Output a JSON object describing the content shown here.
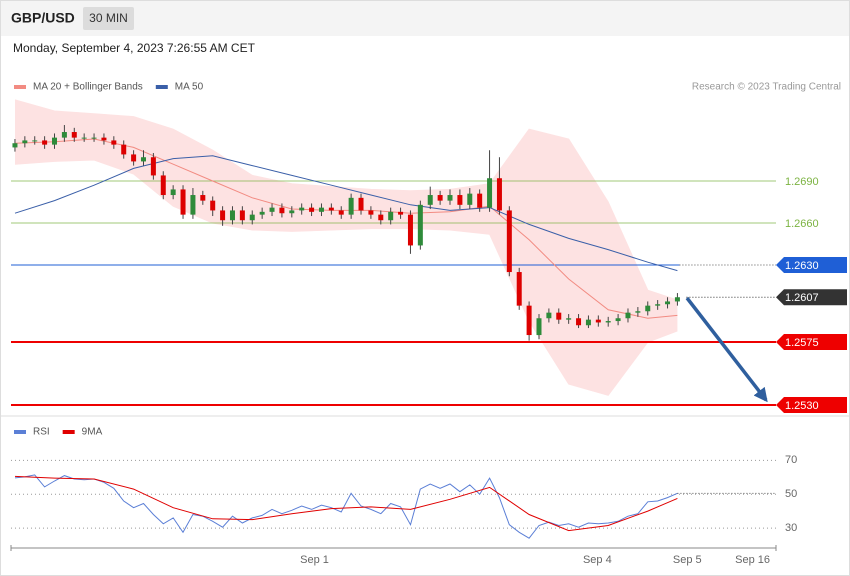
{
  "header": {
    "symbol": "GBP/USD",
    "interval": "30 MIN",
    "timestamp": "Monday, September 4, 2023 7:26:55 AM CET"
  },
  "chart_data": [
    {
      "type": "candlestick",
      "credit": "Research © 2023 Trading Central",
      "up_color": "#2e8b3a",
      "down_color": "#dd0000",
      "xlim": [
        -0.4,
        76.97
      ],
      "ylim": [
        1.25229,
        1.27693
      ],
      "open": [
        1.2714,
        1.2717,
        1.2719,
        1.2719,
        1.2716,
        1.2721,
        1.2725,
        1.2721,
        1.2721,
        1.2721,
        1.2719,
        1.2716,
        1.2709,
        1.2704,
        1.2707,
        1.2694,
        1.268,
        1.2684,
        1.2666,
        1.268,
        1.2676,
        1.2669,
        1.2662,
        1.2669,
        1.2662,
        1.2666,
        1.2668,
        1.2671,
        1.2667,
        1.2669,
        1.2671,
        1.2668,
        1.2671,
        1.2669,
        1.2666,
        1.2678,
        1.2669,
        1.2666,
        1.2662,
        1.2668,
        1.2666,
        1.2644,
        1.2673,
        1.268,
        1.2676,
        1.268,
        1.2673,
        1.2681,
        1.2671,
        1.2692,
        1.2669,
        1.2625,
        1.2601,
        1.258,
        1.2592,
        1.2596,
        1.2591,
        1.2592,
        1.2587,
        1.2591,
        1.2589,
        1.259,
        1.2592,
        1.2596,
        1.2597,
        1.2601,
        1.2602,
        1.2604
      ],
      "high": [
        1.272,
        1.2722,
        1.2722,
        1.2722,
        1.2724,
        1.273,
        1.2728,
        1.2724,
        1.2724,
        1.2724,
        1.2722,
        1.2719,
        1.2712,
        1.2712,
        1.271,
        1.2697,
        1.2687,
        1.2687,
        1.2685,
        1.2683,
        1.2679,
        1.2672,
        1.2672,
        1.2672,
        1.2669,
        1.2671,
        1.2674,
        1.2674,
        1.2672,
        1.2674,
        1.2674,
        1.2674,
        1.2674,
        1.2672,
        1.2681,
        1.2681,
        1.2672,
        1.2669,
        1.2671,
        1.2671,
        1.2669,
        1.2676,
        1.2686,
        1.2683,
        1.2684,
        1.2684,
        1.2685,
        1.2684,
        1.2712,
        1.2707,
        1.2672,
        1.2628,
        1.2604,
        1.2595,
        1.2599,
        1.2599,
        1.2595,
        1.2595,
        1.2594,
        1.2594,
        1.2593,
        1.2595,
        1.2599,
        1.26,
        1.2604,
        1.2605,
        1.2607,
        1.261
      ],
      "low": [
        1.2711,
        1.2714,
        1.2716,
        1.2713,
        1.2713,
        1.2718,
        1.2718,
        1.2718,
        1.2718,
        1.2716,
        1.2713,
        1.2706,
        1.2701,
        1.2701,
        1.2691,
        1.2677,
        1.2677,
        1.2663,
        1.2663,
        1.2673,
        1.2665,
        1.2658,
        1.2659,
        1.2659,
        1.2659,
        1.2663,
        1.2665,
        1.2664,
        1.2664,
        1.2666,
        1.2665,
        1.2665,
        1.2666,
        1.2663,
        1.2663,
        1.2666,
        1.2663,
        1.2659,
        1.2659,
        1.2663,
        1.2638,
        1.2641,
        1.267,
        1.2673,
        1.2673,
        1.267,
        1.267,
        1.2668,
        1.2668,
        1.2666,
        1.2622,
        1.2598,
        1.2576,
        1.2577,
        1.2589,
        1.2588,
        1.2588,
        1.2585,
        1.2585,
        1.2586,
        1.2586,
        1.2587,
        1.2589,
        1.2593,
        1.2594,
        1.2598,
        1.2599,
        1.2601
      ],
      "close": [
        1.2717,
        1.2719,
        1.2719,
        1.2716,
        1.2721,
        1.2725,
        1.2721,
        1.2721,
        1.2721,
        1.2719,
        1.2716,
        1.2709,
        1.2704,
        1.2707,
        1.2694,
        1.268,
        1.2684,
        1.2666,
        1.268,
        1.2676,
        1.2669,
        1.2662,
        1.2669,
        1.2662,
        1.2666,
        1.2668,
        1.2671,
        1.2667,
        1.2669,
        1.2671,
        1.2668,
        1.2671,
        1.2669,
        1.2666,
        1.2678,
        1.2669,
        1.2666,
        1.2662,
        1.2668,
        1.2666,
        1.2644,
        1.2673,
        1.268,
        1.2676,
        1.268,
        1.2673,
        1.2681,
        1.2671,
        1.2692,
        1.2669,
        1.2625,
        1.2601,
        1.258,
        1.2592,
        1.2596,
        1.2591,
        1.2592,
        1.2587,
        1.2591,
        1.2589,
        1.259,
        1.2592,
        1.2596,
        1.2597,
        1.2601,
        1.2602,
        1.2604,
        1.2607
      ],
      "series": [
        {
          "name": "MA 20 + Bollinger Bands",
          "color": "#f28b82",
          "band_color": "#fde2e2",
          "x": [
            0,
            4,
            8,
            12,
            16,
            20,
            24,
            28,
            32,
            36,
            40,
            44,
            48,
            52,
            56,
            60,
            64,
            67
          ],
          "values": [
            1.2717,
            1.2718,
            1.272,
            1.2714,
            1.2702,
            1.269,
            1.2678,
            1.267,
            1.2669,
            1.2669,
            1.2667,
            1.2668,
            1.2672,
            1.2648,
            1.262,
            1.2598,
            1.2592,
            1.2594
          ],
          "upper": [
            1.2748,
            1.274,
            1.2738,
            1.2736,
            1.2727,
            1.2712,
            1.2694,
            1.2688,
            1.2686,
            1.2684,
            1.2683,
            1.2684,
            1.2688,
            1.2727,
            1.272,
            1.2675,
            1.2612,
            1.2605
          ],
          "lower": [
            1.2702,
            1.2704,
            1.2705,
            1.2695,
            1.2672,
            1.266,
            1.2655,
            1.2654,
            1.2655,
            1.2656,
            1.2656,
            1.2655,
            1.2652,
            1.259,
            1.2545,
            1.2537,
            1.2575,
            1.2583
          ]
        },
        {
          "name": "MA 50",
          "color": "#3a5fa8",
          "x": [
            0,
            4,
            8,
            12,
            16,
            20,
            24,
            28,
            32,
            36,
            40,
            44,
            48,
            52,
            56,
            60,
            64,
            67
          ],
          "values": [
            1.2667,
            1.2676,
            1.2687,
            1.2699,
            1.2706,
            1.2708,
            1.2701,
            1.2694,
            1.2687,
            1.268,
            1.2673,
            1.2669,
            1.2671,
            1.2659,
            1.2649,
            1.2641,
            1.2632,
            1.2626
          ]
        }
      ],
      "levels": [
        {
          "value": 1.269,
          "label": "1.2690",
          "color": "#7cb342",
          "style": "solid",
          "box": false
        },
        {
          "value": 1.266,
          "label": "1.2660",
          "color": "#7cb342",
          "style": "solid",
          "box": false
        },
        {
          "value": 1.263,
          "label": "1.2630",
          "color": "#1f5fd6",
          "style": "solid-dotted",
          "box": true
        },
        {
          "value": 1.2607,
          "label": "1.2607",
          "color": "#333333",
          "style": "dotted",
          "box": true
        },
        {
          "value": 1.2575,
          "label": "1.2575",
          "color": "#ee0000",
          "style": "solid",
          "box": true
        },
        {
          "value": 1.253,
          "label": "1.2530",
          "color": "#ee0000",
          "style": "solid",
          "box": true
        }
      ]
    },
    {
      "type": "line",
      "xlim": [
        -0.4,
        76.97
      ],
      "ylim": [
        20,
        82
      ],
      "yticks": [
        70,
        50,
        30
      ],
      "xticks": [
        {
          "value": 30.3,
          "label": "Sep 1"
        },
        {
          "value": 58.9,
          "label": "Sep 4"
        },
        {
          "value": 68.0,
          "label": "Sep 5"
        },
        {
          "value": 74.6,
          "label": "Sep 16"
        }
      ],
      "series": [
        {
          "name": "RSI",
          "color": "#5b7fd6",
          "values": [
            59.6,
            60.2,
            61.4,
            54.3,
            57.8,
            61.0,
            59.0,
            58.5,
            59.0,
            57.0,
            53.5,
            46.0,
            42.0,
            44.5,
            38.0,
            32.5,
            36.0,
            27.5,
            38.0,
            37.0,
            34.0,
            30.5,
            37.0,
            33.0,
            36.0,
            37.5,
            41.0,
            38.5,
            40.5,
            43.0,
            41.0,
            43.5,
            42.0,
            39.5,
            50.5,
            43.0,
            41.0,
            38.5,
            44.5,
            42.5,
            32.0,
            53.0,
            56.0,
            53.5,
            56.0,
            51.5,
            55.5,
            50.0,
            59.5,
            48.0,
            32.0,
            27.5,
            24.0,
            31.5,
            33.5,
            31.5,
            32.5,
            30.5,
            33.0,
            32.5,
            33.0,
            34.0,
            37.0,
            38.5,
            45.5,
            46.0,
            48.0,
            50.5
          ]
        },
        {
          "name": "9MA",
          "color": "#e00000",
          "x": [
            0,
            4,
            8,
            12,
            16,
            20,
            24,
            28,
            32,
            36,
            40,
            44,
            48,
            52,
            56,
            60,
            64,
            67
          ],
          "values": [
            60.5,
            59.5,
            59.0,
            53.0,
            42.0,
            35.5,
            35.0,
            38.5,
            41.5,
            42.5,
            41.0,
            47.0,
            54.0,
            38.0,
            28.5,
            31.5,
            40.0,
            47.5
          ]
        }
      ]
    }
  ]
}
